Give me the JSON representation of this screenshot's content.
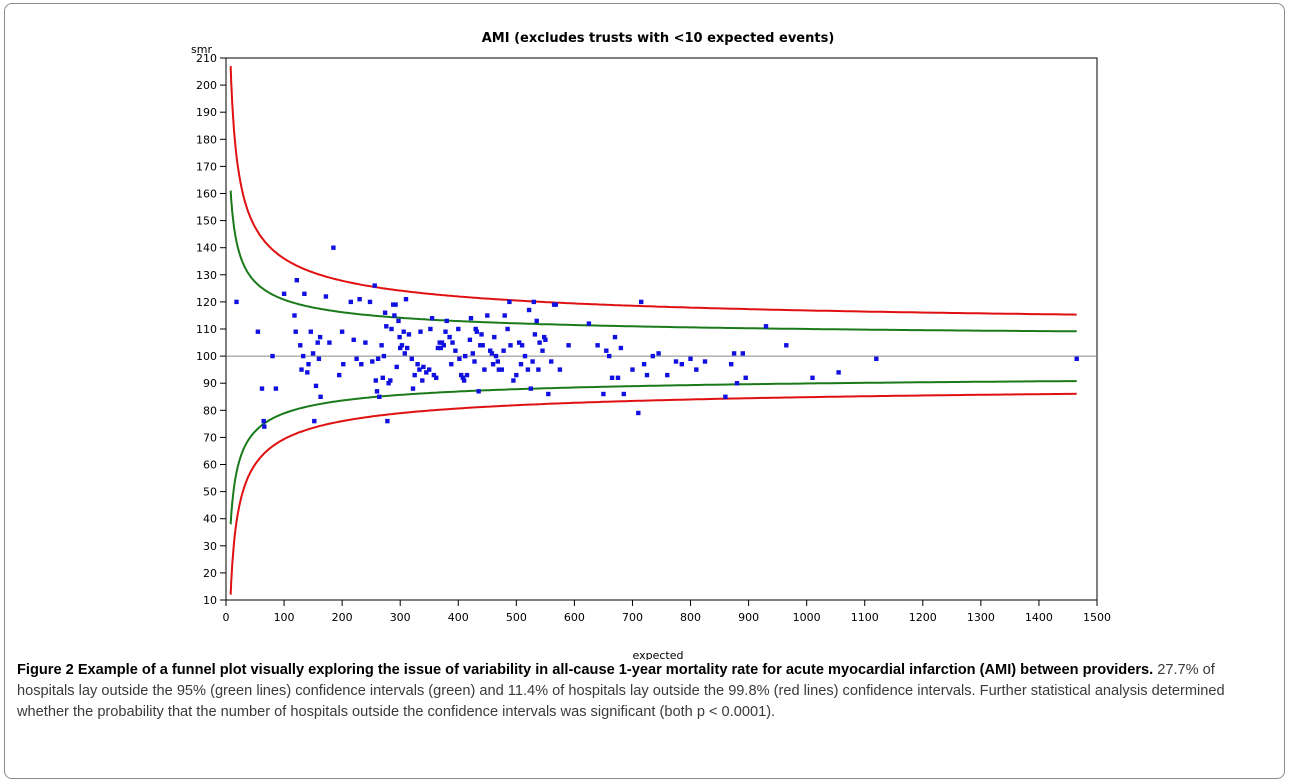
{
  "chart_data": {
    "type": "scatter",
    "title": "AMI (excludes trusts with <10 expected events)",
    "xlabel": "expected",
    "ylabel": "smr",
    "xlim": [
      0,
      1500
    ],
    "ylim": [
      10,
      210
    ],
    "x_ticks": [
      0,
      100,
      200,
      300,
      400,
      500,
      600,
      700,
      800,
      900,
      1000,
      1100,
      1200,
      1300,
      1400,
      1500
    ],
    "y_ticks": [
      10,
      20,
      30,
      40,
      50,
      60,
      70,
      80,
      90,
      100,
      110,
      120,
      130,
      140,
      150,
      160,
      170,
      180,
      190,
      200,
      210
    ],
    "reference_line": 100,
    "grid": false,
    "colors": {
      "points": "#1010e0",
      "ci95": "#1a7a1a",
      "ci998": "#e01010",
      "reference": "#888888"
    },
    "limits": {
      "ci95": {
        "description_color": "green",
        "upper_start": 161,
        "lower_start": 38,
        "upper_end": 105,
        "lower_end": 95
      },
      "ci998": {
        "description_color": "red",
        "upper_start": 207,
        "lower_start": 12,
        "upper_end": 108,
        "lower_end": 92
      }
    },
    "series": [
      {
        "values": [
          [
            18,
            120
          ],
          [
            55,
            109
          ],
          [
            62,
            88
          ],
          [
            65,
            76
          ],
          [
            66,
            74
          ],
          [
            80,
            100
          ],
          [
            86,
            88
          ],
          [
            100,
            123
          ],
          [
            118,
            115
          ],
          [
            120,
            109
          ],
          [
            122,
            128
          ],
          [
            128,
            104
          ],
          [
            130,
            95
          ],
          [
            133,
            100
          ],
          [
            135,
            123
          ],
          [
            140,
            94
          ],
          [
            142,
            97
          ],
          [
            146,
            109
          ],
          [
            150,
            101
          ],
          [
            152,
            76
          ],
          [
            155,
            89
          ],
          [
            158,
            105
          ],
          [
            160,
            99
          ],
          [
            162,
            107
          ],
          [
            163,
            85
          ],
          [
            172,
            122
          ],
          [
            178,
            105
          ],
          [
            185,
            140
          ],
          [
            195,
            93
          ],
          [
            200,
            109
          ],
          [
            202,
            97
          ],
          [
            215,
            120
          ],
          [
            220,
            106
          ],
          [
            225,
            99
          ],
          [
            230,
            121
          ],
          [
            233,
            97
          ],
          [
            240,
            105
          ],
          [
            248,
            120
          ],
          [
            252,
            98
          ],
          [
            256,
            126
          ],
          [
            258,
            91
          ],
          [
            260,
            87
          ],
          [
            262,
            99
          ],
          [
            264,
            85
          ],
          [
            268,
            104
          ],
          [
            270,
            92
          ],
          [
            272,
            100
          ],
          [
            274,
            116
          ],
          [
            276,
            111
          ],
          [
            278,
            76
          ],
          [
            280,
            90
          ],
          [
            283,
            91
          ],
          [
            285,
            110
          ],
          [
            288,
            119
          ],
          [
            290,
            115
          ],
          [
            292,
            119
          ],
          [
            294,
            96
          ],
          [
            297,
            113
          ],
          [
            299,
            107
          ],
          [
            300,
            103
          ],
          [
            303,
            104
          ],
          [
            306,
            109
          ],
          [
            308,
            101
          ],
          [
            310,
            121
          ],
          [
            312,
            103
          ],
          [
            315,
            108
          ],
          [
            320,
            99
          ],
          [
            322,
            88
          ],
          [
            325,
            93
          ],
          [
            330,
            97
          ],
          [
            333,
            95
          ],
          [
            335,
            109
          ],
          [
            338,
            91
          ],
          [
            340,
            96
          ],
          [
            345,
            94
          ],
          [
            350,
            95
          ],
          [
            352,
            110
          ],
          [
            355,
            114
          ],
          [
            358,
            93
          ],
          [
            362,
            92
          ],
          [
            365,
            103
          ],
          [
            368,
            105
          ],
          [
            370,
            103
          ],
          [
            372,
            105
          ],
          [
            375,
            104
          ],
          [
            378,
            109
          ],
          [
            380,
            113
          ],
          [
            385,
            107
          ],
          [
            388,
            97
          ],
          [
            390,
            105
          ],
          [
            395,
            102
          ],
          [
            400,
            110
          ],
          [
            402,
            99
          ],
          [
            405,
            93
          ],
          [
            408,
            92
          ],
          [
            410,
            91
          ],
          [
            412,
            100
          ],
          [
            415,
            93
          ],
          [
            420,
            106
          ],
          [
            422,
            114
          ],
          [
            425,
            101
          ],
          [
            428,
            98
          ],
          [
            430,
            110
          ],
          [
            432,
            109
          ],
          [
            435,
            87
          ],
          [
            438,
            104
          ],
          [
            440,
            108
          ],
          [
            442,
            104
          ],
          [
            445,
            95
          ],
          [
            450,
            115
          ],
          [
            455,
            102
          ],
          [
            458,
            101
          ],
          [
            460,
            97
          ],
          [
            462,
            107
          ],
          [
            465,
            100
          ],
          [
            468,
            98
          ],
          [
            470,
            95
          ],
          [
            475,
            95
          ],
          [
            478,
            102
          ],
          [
            480,
            115
          ],
          [
            485,
            110
          ],
          [
            488,
            120
          ],
          [
            490,
            104
          ],
          [
            495,
            91
          ],
          [
            500,
            93
          ],
          [
            505,
            105
          ],
          [
            508,
            97
          ],
          [
            510,
            104
          ],
          [
            515,
            100
          ],
          [
            520,
            95
          ],
          [
            522,
            117
          ],
          [
            525,
            88
          ],
          [
            528,
            98
          ],
          [
            530,
            120
          ],
          [
            532,
            108
          ],
          [
            535,
            113
          ],
          [
            538,
            95
          ],
          [
            540,
            105
          ],
          [
            545,
            102
          ],
          [
            548,
            107
          ],
          [
            550,
            106
          ],
          [
            555,
            86
          ],
          [
            560,
            98
          ],
          [
            565,
            119
          ],
          [
            568,
            119
          ],
          [
            575,
            95
          ],
          [
            590,
            104
          ],
          [
            625,
            112
          ],
          [
            640,
            104
          ],
          [
            650,
            86
          ],
          [
            655,
            102
          ],
          [
            660,
            100
          ],
          [
            665,
            92
          ],
          [
            670,
            107
          ],
          [
            675,
            92
          ],
          [
            680,
            103
          ],
          [
            685,
            86
          ],
          [
            700,
            95
          ],
          [
            710,
            79
          ],
          [
            715,
            120
          ],
          [
            720,
            97
          ],
          [
            725,
            93
          ],
          [
            735,
            100
          ],
          [
            745,
            101
          ],
          [
            760,
            93
          ],
          [
            775,
            98
          ],
          [
            785,
            97
          ],
          [
            800,
            99
          ],
          [
            810,
            95
          ],
          [
            825,
            98
          ],
          [
            860,
            85
          ],
          [
            870,
            97
          ],
          [
            875,
            101
          ],
          [
            880,
            90
          ],
          [
            890,
            101
          ],
          [
            895,
            92
          ],
          [
            930,
            111
          ],
          [
            965,
            104
          ],
          [
            1010,
            92
          ],
          [
            1055,
            94
          ],
          [
            1120,
            99
          ],
          [
            1465,
            99
          ]
        ]
      }
    ]
  },
  "caption": {
    "bold": "Figure 2 Example of a funnel plot visually exploring the issue of variability in all-cause 1-year mortality rate for acute myocardial infarction (AMI) between providers.",
    "text": " 27.7% of hospitals lay outside the 95% (green lines) confidence intervals (green) and 11.4% of hospitals lay outside the 99.8% (red lines) confidence intervals. Further statistical analysis determined whether the probability that the number of hospitals outside the confidence intervals was significant (both p < 0.0001)."
  }
}
